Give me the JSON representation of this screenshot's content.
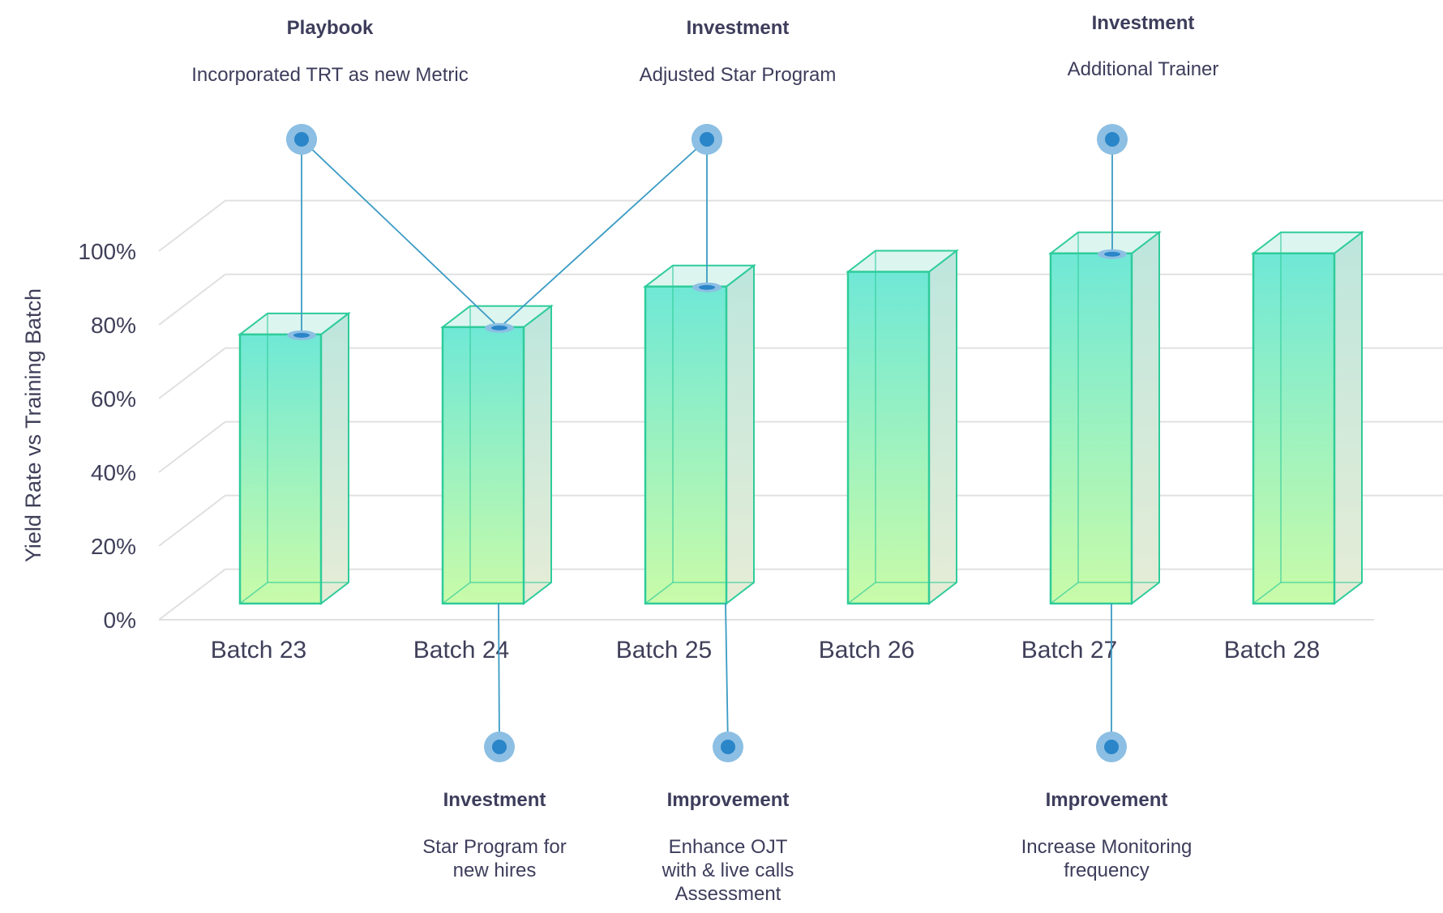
{
  "chart_data": {
    "type": "bar",
    "ylabel": "Yield Rate vs Training Batch",
    "categories": [
      "Batch 23",
      "Batch 24",
      "Batch 25",
      "Batch 26",
      "Batch 27",
      "Batch 28"
    ],
    "values": [
      73,
      75,
      86,
      90,
      95,
      95
    ],
    "ylim": [
      0,
      100
    ],
    "yticks": [
      0,
      20,
      40,
      60,
      80,
      100
    ],
    "ytick_labels": [
      "0%",
      "20%",
      "40%",
      "60%",
      "80%",
      "100%"
    ],
    "grid": true,
    "colors": {
      "bar_top": "#6fe8d6",
      "bar_bottom": "#c9fba9",
      "bar_edge": "#2ecc9a",
      "annotation_line": "#3a9bc4",
      "marker_outer": "#8cbfe3",
      "marker_inner": "#2a85c9",
      "grid": "#e0e0e0",
      "text": "#3f3f5a"
    },
    "annotations": [
      {
        "position": "top",
        "bar": 0,
        "title": "Playbook",
        "text_lines": [
          "Incorporated TRT as new Metric"
        ]
      },
      {
        "position": "top",
        "bar": 2,
        "title": "Investment",
        "text_lines": [
          "Adjusted Star Program"
        ]
      },
      {
        "position": "top",
        "bar": 4,
        "title": "Investment",
        "text_lines": [
          "Additional Trainer"
        ]
      },
      {
        "position": "bottom",
        "bar": 1,
        "title": "Investment",
        "text_lines": [
          "Star Program for",
          "new hires"
        ]
      },
      {
        "position": "bottom",
        "bar": 2,
        "title": "Improvement",
        "text_lines": [
          "Enhance OJT",
          "with & live calls",
          "Assessment"
        ]
      },
      {
        "position": "bottom",
        "bar": 4,
        "title": "Improvement",
        "text_lines": [
          "Increase Monitoring",
          "frequency"
        ]
      }
    ]
  }
}
